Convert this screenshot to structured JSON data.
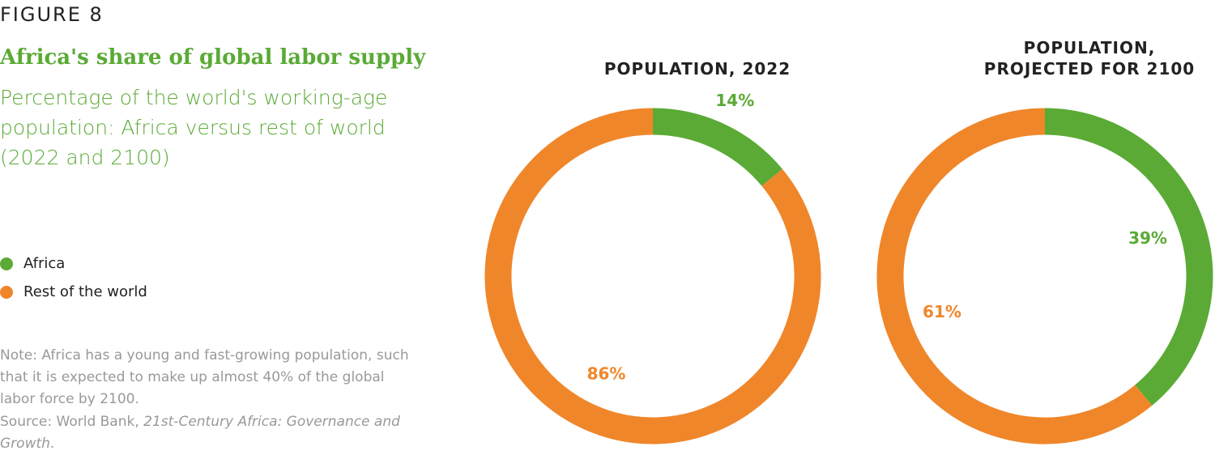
{
  "figure_label": "FIGURE 8",
  "title": "Africa's share of global labor supply",
  "subtitle": "Percentage of the world's working-age population: Africa versus rest of world (2022 and 2100)",
  "legend": [
    {
      "name": "Africa",
      "color": "#5aaa35"
    },
    {
      "name": "Rest of the world",
      "color": "#f0862a"
    }
  ],
  "note": "Note: Africa has a young and fast-growing population, such that it is expected to make up almost 40% of the global labor force by 2100.",
  "source": {
    "prefix": "Source: World Bank, ",
    "italic": "21st-Century Africa: Governance and Growth",
    "suffix": "."
  },
  "chart_data": [
    {
      "type": "donut",
      "title": "POPULATION, 2022",
      "values": [
        14,
        86
      ],
      "value_labels": [
        "14%",
        "86%"
      ]
    },
    {
      "type": "donut",
      "title": "POPULATION, PROJECTED FOR 2100",
      "values": [
        39,
        61
      ],
      "value_labels": [
        "39%",
        "61%"
      ]
    }
  ]
}
